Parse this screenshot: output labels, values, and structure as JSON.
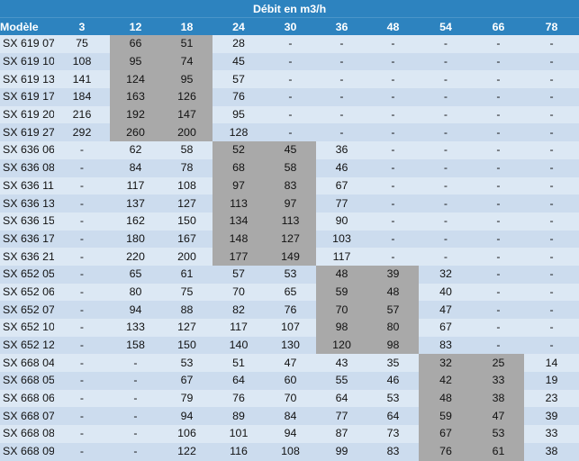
{
  "table": {
    "title": "Débit en m3/h",
    "model_header": "Modèle",
    "columns": [
      "3",
      "12",
      "18",
      "24",
      "30",
      "36",
      "48",
      "54",
      "66",
      "78"
    ],
    "rows": [
      {
        "model": "SX 619 07",
        "values": [
          "75",
          "66",
          "51",
          "28",
          "-",
          "-",
          "-",
          "-",
          "-",
          "-"
        ],
        "highlight": [
          1,
          2
        ]
      },
      {
        "model": "SX 619 10",
        "values": [
          "108",
          "95",
          "74",
          "45",
          "-",
          "-",
          "-",
          "-",
          "-",
          "-"
        ],
        "highlight": [
          1,
          2
        ]
      },
      {
        "model": "SX 619 13",
        "values": [
          "141",
          "124",
          "95",
          "57",
          "-",
          "-",
          "-",
          "-",
          "-",
          "-"
        ],
        "highlight": [
          1,
          2
        ]
      },
      {
        "model": "SX 619 17",
        "values": [
          "184",
          "163",
          "126",
          "76",
          "-",
          "-",
          "-",
          "-",
          "-",
          "-"
        ],
        "highlight": [
          1,
          2
        ]
      },
      {
        "model": "SX 619 20",
        "values": [
          "216",
          "192",
          "147",
          "95",
          "-",
          "-",
          "-",
          "-",
          "-",
          "-"
        ],
        "highlight": [
          1,
          2
        ]
      },
      {
        "model": "SX 619 27",
        "values": [
          "292",
          "260",
          "200",
          "128",
          "-",
          "-",
          "-",
          "-",
          "-",
          "-"
        ],
        "highlight": [
          1,
          2
        ]
      },
      {
        "model": "SX 636 06",
        "values": [
          "-",
          "62",
          "58",
          "52",
          "45",
          "36",
          "-",
          "-",
          "-",
          "-"
        ],
        "highlight": [
          3,
          4
        ]
      },
      {
        "model": "SX 636 08",
        "values": [
          "-",
          "84",
          "78",
          "68",
          "58",
          "46",
          "-",
          "-",
          "-",
          "-"
        ],
        "highlight": [
          3,
          4
        ]
      },
      {
        "model": "SX 636 11",
        "values": [
          "-",
          "117",
          "108",
          "97",
          "83",
          "67",
          "-",
          "-",
          "-",
          "-"
        ],
        "highlight": [
          3,
          4
        ]
      },
      {
        "model": "SX 636 13",
        "values": [
          "-",
          "137",
          "127",
          "113",
          "97",
          "77",
          "-",
          "-",
          "-",
          "-"
        ],
        "highlight": [
          3,
          4
        ]
      },
      {
        "model": "SX 636 15",
        "values": [
          "-",
          "162",
          "150",
          "134",
          "113",
          "90",
          "-",
          "-",
          "-",
          "-"
        ],
        "highlight": [
          3,
          4
        ]
      },
      {
        "model": "SX 636 17",
        "values": [
          "-",
          "180",
          "167",
          "148",
          "127",
          "103",
          "-",
          "-",
          "-",
          "-"
        ],
        "highlight": [
          3,
          4
        ]
      },
      {
        "model": "SX 636 21",
        "values": [
          "-",
          "220",
          "200",
          "177",
          "149",
          "117",
          "-",
          "-",
          "-",
          "-"
        ],
        "highlight": [
          3,
          4
        ]
      },
      {
        "model": "SX 652 05",
        "values": [
          "-",
          "65",
          "61",
          "57",
          "53",
          "48",
          "39",
          "32",
          "-",
          "-"
        ],
        "highlight": [
          5,
          6
        ]
      },
      {
        "model": "SX 652 06",
        "values": [
          "-",
          "80",
          "75",
          "70",
          "65",
          "59",
          "48",
          "40",
          "-",
          "-"
        ],
        "highlight": [
          5,
          6
        ]
      },
      {
        "model": "SX 652 07",
        "values": [
          "-",
          "94",
          "88",
          "82",
          "76",
          "70",
          "57",
          "47",
          "-",
          "-"
        ],
        "highlight": [
          5,
          6
        ]
      },
      {
        "model": "SX 652 10",
        "values": [
          "-",
          "133",
          "127",
          "117",
          "107",
          "98",
          "80",
          "67",
          "-",
          "-"
        ],
        "highlight": [
          5,
          6
        ]
      },
      {
        "model": "SX 652 12",
        "values": [
          "-",
          "158",
          "150",
          "140",
          "130",
          "120",
          "98",
          "83",
          "-",
          "-"
        ],
        "highlight": [
          5,
          6
        ]
      },
      {
        "model": "SX 668 04",
        "values": [
          "-",
          "-",
          "53",
          "51",
          "47",
          "43",
          "35",
          "32",
          "25",
          "14"
        ],
        "highlight": [
          7,
          8
        ]
      },
      {
        "model": "SX 668 05",
        "values": [
          "-",
          "-",
          "67",
          "64",
          "60",
          "55",
          "46",
          "42",
          "33",
          "19"
        ],
        "highlight": [
          7,
          8
        ]
      },
      {
        "model": "SX 668 06",
        "values": [
          "-",
          "-",
          "79",
          "76",
          "70",
          "64",
          "53",
          "48",
          "38",
          "23"
        ],
        "highlight": [
          7,
          8
        ]
      },
      {
        "model": "SX 668 07",
        "values": [
          "-",
          "-",
          "94",
          "89",
          "84",
          "77",
          "64",
          "59",
          "47",
          "39"
        ],
        "highlight": [
          7,
          8
        ]
      },
      {
        "model": "SX 668 08",
        "values": [
          "-",
          "-",
          "106",
          "101",
          "94",
          "87",
          "73",
          "67",
          "53",
          "33"
        ],
        "highlight": [
          7,
          8
        ]
      },
      {
        "model": "SX 668 09",
        "values": [
          "-",
          "-",
          "122",
          "116",
          "108",
          "99",
          "83",
          "76",
          "61",
          "38"
        ],
        "highlight": [
          7,
          8
        ]
      }
    ],
    "colors": {
      "header_bg": "#2d83bf",
      "header_text": "#ffffff",
      "row_bg": "#dce8f4",
      "row_alt_bg": "#ccdcee",
      "highlight_bg": "#a9a9a9"
    }
  }
}
